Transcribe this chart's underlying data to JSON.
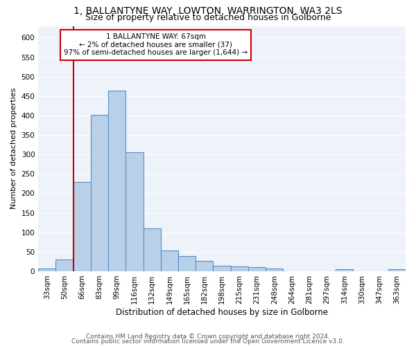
{
  "title": "1, BALLANTYNE WAY, LOWTON, WARRINGTON, WA3 2LS",
  "subtitle": "Size of property relative to detached houses in Golborne",
  "xlabel": "Distribution of detached houses by size in Golborne",
  "ylabel": "Number of detached properties",
  "categories": [
    "33sqm",
    "50sqm",
    "66sqm",
    "83sqm",
    "99sqm",
    "116sqm",
    "132sqm",
    "149sqm",
    "165sqm",
    "182sqm",
    "198sqm",
    "215sqm",
    "231sqm",
    "248sqm",
    "264sqm",
    "281sqm",
    "297sqm",
    "314sqm",
    "330sqm",
    "347sqm",
    "363sqm"
  ],
  "values": [
    7,
    30,
    230,
    402,
    463,
    305,
    110,
    53,
    39,
    26,
    14,
    12,
    10,
    7,
    0,
    0,
    0,
    5,
    0,
    0,
    5
  ],
  "bar_color": "#b8d0e8",
  "bar_edge_color": "#5b8cc8",
  "vline_color": "#cc0000",
  "vline_x_index": 2,
  "annotation_text": "1 BALLANTYNE WAY: 67sqm\n← 2% of detached houses are smaller (37)\n97% of semi-detached houses are larger (1,644) →",
  "annotation_box_color": "#cc0000",
  "footer_line1": "Contains HM Land Registry data © Crown copyright and database right 2024.",
  "footer_line2": "Contains public sector information licensed under the Open Government Licence v3.0.",
  "ylim": [
    0,
    630
  ],
  "yticks": [
    0,
    50,
    100,
    150,
    200,
    250,
    300,
    350,
    400,
    450,
    500,
    550,
    600
  ],
  "background_color": "#eef2f9",
  "grid_color": "#ffffff",
  "title_fontsize": 10,
  "subtitle_fontsize": 9,
  "ylabel_fontsize": 8,
  "xlabel_fontsize": 8.5,
  "tick_fontsize": 7.5,
  "footer_fontsize": 6.5,
  "annotation_fontsize": 7.5
}
